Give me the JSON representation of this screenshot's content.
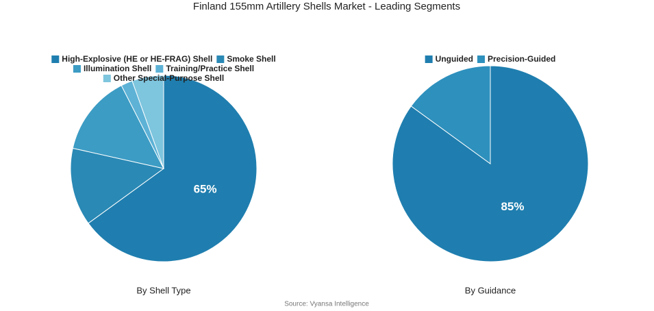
{
  "title": "Finland 155mm Artillery Shells Market - Leading Segments",
  "source": "Source: Vyansa Intelligence",
  "chart_data": [
    {
      "type": "pie",
      "title": "By Shell Type",
      "categories": [
        "High-Explosive (HE or HE-FRAG) Shell",
        "Smoke Shell",
        "Illumination Shell",
        "Training/Practice Shell",
        "Other Special-Purpose Shell"
      ],
      "values": [
        65,
        13.5,
        14,
        2,
        5.5
      ],
      "value_labels": [
        "65%",
        null,
        null,
        null,
        null
      ],
      "colors": [
        "#1f7eaf",
        "#2a89b5",
        "#3c9cc4",
        "#5db2d6",
        "#7ec5de"
      ]
    },
    {
      "type": "pie",
      "title": "By Guidance",
      "categories": [
        "Unguided",
        "Precision-Guided"
      ],
      "values": [
        85,
        15
      ],
      "value_labels": [
        "85%",
        null
      ],
      "colors": [
        "#1f7eaf",
        "#2e90bd"
      ]
    }
  ]
}
